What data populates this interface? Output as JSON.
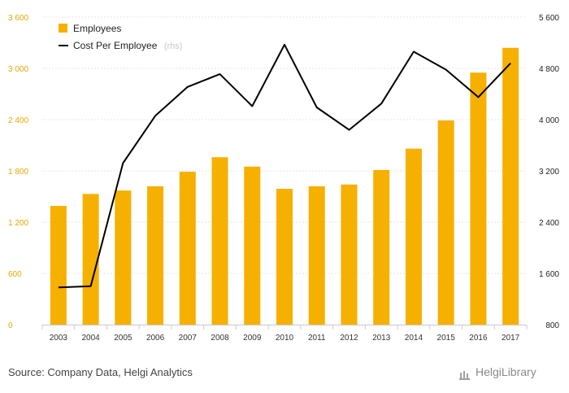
{
  "chart_data": {
    "type": "bar+line",
    "categories": [
      "2003",
      "2004",
      "2005",
      "2006",
      "2007",
      "2008",
      "2009",
      "2010",
      "2011",
      "2012",
      "2013",
      "2014",
      "2015",
      "2016",
      "2017"
    ],
    "series": [
      {
        "name": "Employees",
        "type": "bar",
        "axis": "left",
        "color": "#f6b000",
        "values": [
          1390,
          1530,
          1570,
          1620,
          1790,
          1960,
          1850,
          1590,
          1620,
          1640,
          1810,
          2060,
          2390,
          2950,
          3240
        ]
      },
      {
        "name": "Cost Per Employee",
        "note": "(rhs)",
        "type": "line",
        "axis": "right",
        "color": "#000000",
        "values": [
          1380,
          1400,
          3320,
          4060,
          4510,
          4710,
          4210,
          5170,
          4190,
          3840,
          4250,
          5060,
          4780,
          4350,
          4880
        ]
      }
    ],
    "y_left": {
      "min": 0,
      "max": 3600,
      "ticks": [
        "0",
        "600",
        "1 200",
        "1 800",
        "2 400",
        "3 000",
        "3 600"
      ]
    },
    "y_right": {
      "min": 800,
      "max": 5600,
      "ticks": [
        "800",
        "1 600",
        "2 400",
        "3 200",
        "4 000",
        "4 800",
        "5 600"
      ]
    },
    "legend_position": "top-left",
    "grid": true
  },
  "footer": {
    "source": "Source: Company Data, Helgi Analytics",
    "brand": "HelgiLibrary"
  }
}
